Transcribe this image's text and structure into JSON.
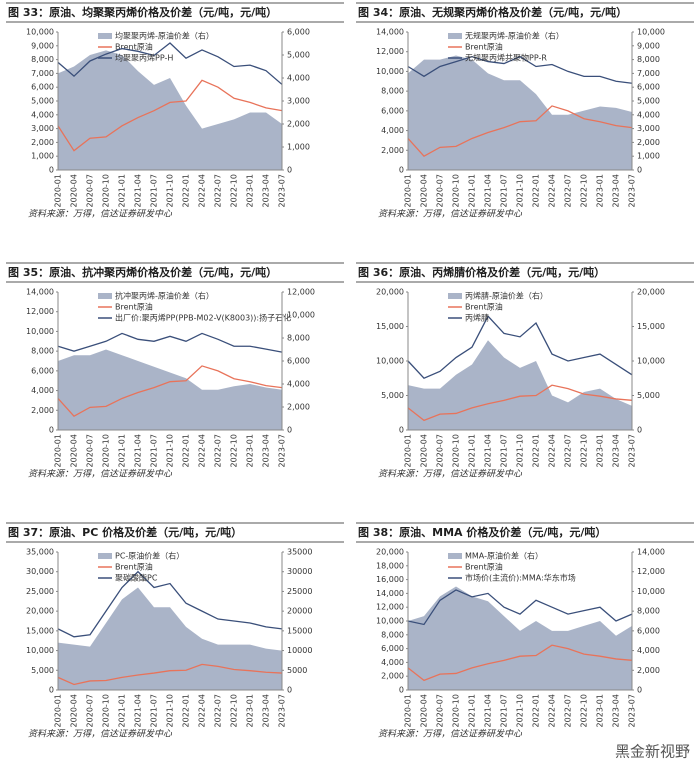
{
  "watermark": "黑金新视野",
  "chart_data": [
    {
      "type": "combo",
      "title": "图 33：原油、均聚聚丙烯价格及价差（元/吨，元/吨）",
      "source": "资料来源：万得，信达证券研发中心",
      "x": [
        "2020-01",
        "2020-04",
        "2020-07",
        "2020-10",
        "2021-01",
        "2021-04",
        "2021-07",
        "2021-10",
        "2022-01",
        "2022-04",
        "2022-07",
        "2022-10",
        "2023-01",
        "2023-04",
        "2023-07"
      ],
      "ylim": [
        0,
        10000
      ],
      "yticks": [
        0,
        {
          "value": 1000,
          "label": "1,000"
        },
        {
          "value": 2000,
          "label": "2,000"
        },
        {
          "value": 3000,
          "label": "3,000"
        },
        {
          "value": 4000,
          "label": "4,000"
        },
        {
          "value": 5000,
          "label": "5,000"
        },
        {
          "value": 6000,
          "label": "6,000"
        },
        {
          "value": 7000,
          "label": "7,000"
        },
        {
          "value": 8000,
          "label": "8,000"
        },
        {
          "value": 9000,
          "label": "9,000"
        },
        {
          "value": 10000,
          "label": "10,000"
        }
      ],
      "y2lim": [
        0,
        6000
      ],
      "y2ticks": [
        0,
        {
          "value": 1000,
          "label": "1,000"
        },
        {
          "value": 2000,
          "label": "2,000"
        },
        {
          "value": 3000,
          "label": "3,000"
        },
        {
          "value": 4000,
          "label": "4,000"
        },
        {
          "value": 5000,
          "label": "5,000"
        },
        {
          "value": 6000,
          "label": "6,000"
        }
      ],
      "series": [
        {
          "name": "均聚聚丙烯-原油价差（右）",
          "style": "area",
          "axis": "y2",
          "color": "#aab4c8",
          "values": [
            4200,
            4500,
            5000,
            5200,
            5000,
            4300,
            3700,
            4000,
            2800,
            1800,
            2000,
            2200,
            2500,
            2500,
            2000
          ]
        },
        {
          "name": "Brent原油",
          "style": "line",
          "color": "#e8735a",
          "values": [
            3200,
            1400,
            2300,
            2400,
            3200,
            3800,
            4300,
            4900,
            5000,
            6500,
            6000,
            5200,
            4900,
            4500,
            4300
          ]
        },
        {
          "name": "均聚聚丙烯PP-H",
          "style": "line",
          "color": "#3a4f7a",
          "values": [
            7800,
            6800,
            7900,
            8400,
            8800,
            8600,
            8300,
            9200,
            8100,
            8700,
            8200,
            7500,
            7600,
            7200,
            6200
          ]
        }
      ]
    },
    {
      "type": "combo",
      "title": "图 34：原油、无规聚丙烯价格及价差（元/吨，元/吨）",
      "source": "资料来源：万得，信达证券研发中心",
      "x": [
        "2020-01",
        "2020-04",
        "2020-07",
        "2020-10",
        "2021-01",
        "2021-04",
        "2021-07",
        "2021-10",
        "2022-01",
        "2022-04",
        "2022-07",
        "2022-10",
        "2023-01",
        "2023-04",
        "2023-07"
      ],
      "ylim": [
        0,
        14000
      ],
      "yticks": [
        0,
        {
          "value": 2000,
          "label": "2,000"
        },
        {
          "value": 4000,
          "label": "4,000"
        },
        {
          "value": 6000,
          "label": "6,000"
        },
        {
          "value": 8000,
          "label": "8,000"
        },
        {
          "value": 10000,
          "label": "10,000"
        },
        {
          "value": 12000,
          "label": "12,000"
        },
        {
          "value": 14000,
          "label": "14,000"
        }
      ],
      "y2lim": [
        0,
        10000
      ],
      "y2ticks": [
        0,
        {
          "value": 1000,
          "label": "1,000"
        },
        {
          "value": 2000,
          "label": "2,000"
        },
        {
          "value": 3000,
          "label": "3,000"
        },
        {
          "value": 4000,
          "label": "4,000"
        },
        {
          "value": 5000,
          "label": "5,000"
        },
        {
          "value": 6000,
          "label": "6,000"
        },
        {
          "value": 7000,
          "label": "7,000"
        },
        {
          "value": 8000,
          "label": "8,000"
        },
        {
          "value": 9000,
          "label": "9,000"
        },
        {
          "value": 10000,
          "label": "10,000"
        }
      ],
      "series": [
        {
          "name": "无规聚丙烯-原油价差（右）",
          "style": "area",
          "axis": "y2",
          "color": "#aab4c8",
          "values": [
            7000,
            8000,
            8000,
            8300,
            8000,
            7000,
            6500,
            6500,
            5500,
            4000,
            4000,
            4300,
            4600,
            4500,
            4200
          ]
        },
        {
          "name": "Brent原油",
          "style": "line",
          "color": "#e8735a",
          "values": [
            3200,
            1400,
            2300,
            2400,
            3200,
            3800,
            4300,
            4900,
            5000,
            6500,
            6000,
            5200,
            4900,
            4500,
            4300
          ]
        },
        {
          "name": "无规聚丙烯共聚物PP-R",
          "style": "line",
          "color": "#3a4f7a",
          "values": [
            10500,
            9500,
            10500,
            11000,
            11500,
            11000,
            10800,
            11500,
            10500,
            10700,
            10000,
            9500,
            9500,
            9000,
            8800
          ]
        }
      ]
    },
    {
      "type": "combo",
      "title": "图 35：原油、抗冲聚丙烯价格及价差（元/吨，元/吨）",
      "source": "资料来源：万得，信达证券研发中心",
      "x": [
        "2020-01",
        "2020-04",
        "2020-07",
        "2020-10",
        "2021-01",
        "2021-04",
        "2021-07",
        "2021-10",
        "2022-01",
        "2022-04",
        "2022-07",
        "2022-10",
        "2023-01",
        "2023-04",
        "2023-07"
      ],
      "ylim": [
        0,
        14000
      ],
      "yticks": [
        0,
        {
          "value": 2000,
          "label": "2,000"
        },
        {
          "value": 4000,
          "label": "4,000"
        },
        {
          "value": 6000,
          "label": "6,000"
        },
        {
          "value": 8000,
          "label": "8,000"
        },
        {
          "value": 10000,
          "label": "10,000"
        },
        {
          "value": 12000,
          "label": "12,000"
        },
        {
          "value": 14000,
          "label": "14,000"
        }
      ],
      "y2lim": [
        0,
        12000
      ],
      "y2ticks": [
        0,
        {
          "value": 2000,
          "label": "2,000"
        },
        {
          "value": 4000,
          "label": "4,000"
        },
        {
          "value": 6000,
          "label": "6,000"
        },
        {
          "value": 8000,
          "label": "8,000"
        },
        {
          "value": 10000,
          "label": "10,000"
        },
        {
          "value": 12000,
          "label": "12,000"
        }
      ],
      "series": [
        {
          "name": "抗冲聚丙烯-原油价差（右）",
          "style": "area",
          "axis": "y2",
          "color": "#aab4c8",
          "values": [
            6000,
            6500,
            6500,
            7000,
            6500,
            6000,
            5500,
            5000,
            4500,
            3500,
            3500,
            3800,
            4000,
            3700,
            3500
          ]
        },
        {
          "name": "Brent原油",
          "style": "line",
          "color": "#e8735a",
          "values": [
            3200,
            1400,
            2300,
            2400,
            3200,
            3800,
            4300,
            4900,
            5000,
            6500,
            6000,
            5200,
            4900,
            4500,
            4300
          ]
        },
        {
          "name": "出厂价:聚丙烯PP(PPB-M02-V(K8003)):扬子石化",
          "style": "line",
          "color": "#3a4f7a",
          "values": [
            8500,
            8000,
            8500,
            9000,
            9800,
            9200,
            9000,
            9500,
            9000,
            9800,
            9200,
            8500,
            8500,
            8200,
            7900
          ]
        }
      ]
    },
    {
      "type": "combo",
      "title": "图 36：原油、丙烯腈价格及价差（元/吨，元/吨）",
      "source": "资料来源：万得，信达证券研发中心",
      "x": [
        "2020-01",
        "2020-04",
        "2020-07",
        "2020-10",
        "2021-01",
        "2021-04",
        "2021-07",
        "2021-10",
        "2022-01",
        "2022-04",
        "2022-07",
        "2022-10",
        "2023-01",
        "2023-04",
        "2023-07"
      ],
      "ylim": [
        0,
        20000
      ],
      "yticks": [
        0,
        {
          "value": 5000,
          "label": "5,000"
        },
        {
          "value": 10000,
          "label": "10,000"
        },
        {
          "value": 15000,
          "label": "15,000"
        },
        {
          "value": 20000,
          "label": "20,000"
        }
      ],
      "y2lim": [
        0,
        20000
      ],
      "y2ticks": [
        0,
        {
          "value": 5000,
          "label": "5,000"
        },
        {
          "value": 10000,
          "label": "10,000"
        },
        {
          "value": 15000,
          "label": "15,000"
        },
        {
          "value": 20000,
          "label": "20,000"
        }
      ],
      "series": [
        {
          "name": "丙烯腈-原油价差（右）",
          "style": "area",
          "axis": "y2",
          "color": "#aab4c8",
          "values": [
            6500,
            6000,
            6000,
            8000,
            9500,
            13000,
            10500,
            9000,
            10000,
            5000,
            4000,
            5500,
            6000,
            4500,
            3500
          ]
        },
        {
          "name": "Brent原油",
          "style": "line",
          "color": "#e8735a",
          "values": [
            3200,
            1400,
            2300,
            2400,
            3200,
            3800,
            4300,
            4900,
            5000,
            6500,
            6000,
            5200,
            4900,
            4500,
            4300
          ]
        },
        {
          "name": "丙烯腈",
          "style": "line",
          "color": "#3a4f7a",
          "values": [
            10000,
            7500,
            8500,
            10500,
            12000,
            16500,
            14000,
            13500,
            15500,
            11000,
            10000,
            10500,
            11000,
            9500,
            8000
          ]
        }
      ]
    },
    {
      "type": "combo",
      "title": "图 37：原油、PC 价格及价差（元/吨，元/吨）",
      "source": "资料来源：万得，信达证券研发中心",
      "x": [
        "2020-01",
        "2020-04",
        "2020-07",
        "2020-10",
        "2021-01",
        "2021-04",
        "2021-07",
        "2021-10",
        "2022-01",
        "2022-04",
        "2022-07",
        "2022-10",
        "2023-01",
        "2023-04",
        "2023-07"
      ],
      "ylim": [
        0,
        35000
      ],
      "yticks": [
        0,
        {
          "value": 5000,
          "label": "5,000"
        },
        {
          "value": 10000,
          "label": "10,000"
        },
        {
          "value": 15000,
          "label": "15,000"
        },
        {
          "value": 20000,
          "label": "20,000"
        },
        {
          "value": 25000,
          "label": "25,000"
        },
        {
          "value": 30000,
          "label": "30,000"
        },
        {
          "value": 35000,
          "label": "35,000"
        }
      ],
      "y2lim": [
        0,
        35000
      ],
      "y2ticks": [
        0,
        {
          "value": 5000,
          "label": "5000"
        },
        {
          "value": 10000,
          "label": "10000"
        },
        {
          "value": 15000,
          "label": "15000"
        },
        {
          "value": 20000,
          "label": "20000"
        },
        {
          "value": 25000,
          "label": "25000"
        },
        {
          "value": 30000,
          "label": "30000"
        },
        {
          "value": 35000,
          "label": "35000"
        }
      ],
      "series": [
        {
          "name": "PC-原油价差（右）",
          "style": "area",
          "axis": "y2",
          "color": "#aab4c8",
          "values": [
            12000,
            11500,
            11000,
            17000,
            23000,
            26000,
            21000,
            21000,
            16000,
            13000,
            11500,
            11500,
            11500,
            10500,
            10000
          ]
        },
        {
          "name": "Brent原油",
          "style": "line",
          "color": "#e8735a",
          "values": [
            3200,
            1400,
            2300,
            2400,
            3200,
            3800,
            4300,
            4900,
            5000,
            6500,
            6000,
            5200,
            4900,
            4500,
            4300
          ]
        },
        {
          "name": "聚碳酸酯PC",
          "style": "line",
          "color": "#3a4f7a",
          "values": [
            15500,
            13500,
            14000,
            20000,
            26000,
            30000,
            26000,
            27000,
            22000,
            20000,
            18000,
            17500,
            17000,
            16000,
            15500
          ]
        }
      ]
    },
    {
      "type": "combo",
      "title": "图 38：原油、MMA 价格及价差（元/吨，元/吨）",
      "source": "资料来源：万得，信达证券研发中心",
      "x": [
        "2020-01",
        "2020-04",
        "2020-07",
        "2020-10",
        "2021-01",
        "2021-04",
        "2021-07",
        "2021-10",
        "2022-01",
        "2022-04",
        "2022-07",
        "2022-10",
        "2023-01",
        "2023-04",
        "2023-07"
      ],
      "ylim": [
        0,
        20000
      ],
      "yticks": [
        0,
        {
          "value": 2000,
          "label": "2,000"
        },
        {
          "value": 4000,
          "label": "4,000"
        },
        {
          "value": 6000,
          "label": "6,000"
        },
        {
          "value": 8000,
          "label": "8,000"
        },
        {
          "value": 10000,
          "label": "10,000"
        },
        {
          "value": 12000,
          "label": "12,000"
        },
        {
          "value": 14000,
          "label": "14,000"
        },
        {
          "value": 16000,
          "label": "16,000"
        },
        {
          "value": 18000,
          "label": "18,000"
        },
        {
          "value": 20000,
          "label": "20,000"
        }
      ],
      "y2lim": [
        0,
        14000
      ],
      "y2ticks": [
        0,
        {
          "value": 2000,
          "label": "2,000"
        },
        {
          "value": 4000,
          "label": "4,000"
        },
        {
          "value": 6000,
          "label": "6,000"
        },
        {
          "value": 8000,
          "label": "8,000"
        },
        {
          "value": 10000,
          "label": "10,000"
        },
        {
          "value": 12000,
          "label": "12,000"
        },
        {
          "value": 14000,
          "label": "14,000"
        }
      ],
      "series": [
        {
          "name": "MMA-原油价差（右）",
          "style": "area",
          "axis": "y2",
          "color": "#aab4c8",
          "values": [
            7000,
            7500,
            9500,
            10500,
            9500,
            9000,
            7500,
            6000,
            7000,
            6000,
            6000,
            6500,
            7000,
            5500,
            6500
          ]
        },
        {
          "name": "Brent原油",
          "style": "line",
          "color": "#e8735a",
          "values": [
            3200,
            1400,
            2300,
            2400,
            3200,
            3800,
            4300,
            4900,
            5000,
            6500,
            6000,
            5200,
            4900,
            4500,
            4300
          ]
        },
        {
          "name": "市场价(主流价):MMA:华东市场",
          "style": "line",
          "color": "#3a4f7a",
          "values": [
            10000,
            9500,
            13000,
            14500,
            13500,
            14000,
            12000,
            11000,
            13000,
            12000,
            11000,
            11500,
            12000,
            10000,
            11000
          ]
        }
      ]
    }
  ]
}
